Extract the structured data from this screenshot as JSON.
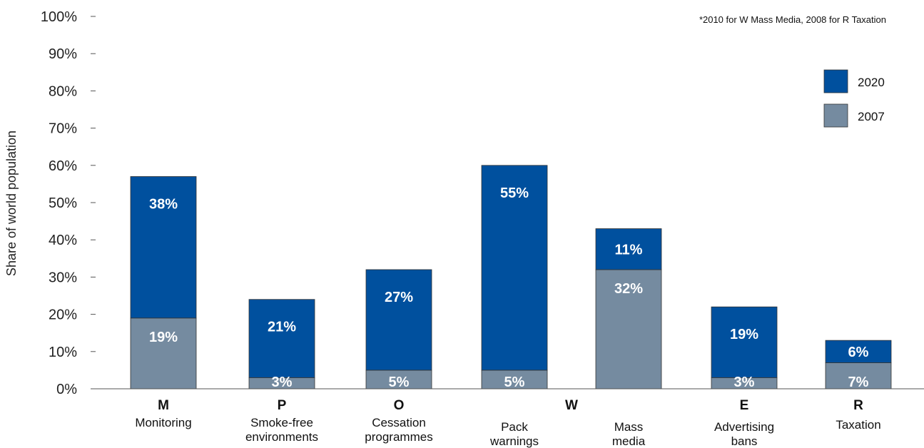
{
  "chart_data": {
    "type": "bar",
    "stacked": true,
    "ylabel": "Share of world population",
    "ylim": [
      0,
      100
    ],
    "yticks": [
      "0%",
      "10%",
      "20%",
      "30%",
      "40%",
      "50%",
      "60%",
      "70%",
      "80%",
      "90%",
      "100%"
    ],
    "note": "*2010 for W Mass Media, 2008 for R Taxation",
    "groups": [
      {
        "letter": "M",
        "categories": [
          "Monitoring"
        ]
      },
      {
        "letter": "P",
        "categories": [
          "Smoke-free environments"
        ]
      },
      {
        "letter": "O",
        "categories": [
          "Cessation programmes"
        ]
      },
      {
        "letter": "W",
        "categories": [
          "Pack warnings",
          "Mass media"
        ]
      },
      {
        "letter": "E",
        "categories": [
          "Advertising bans"
        ]
      },
      {
        "letter": "R",
        "categories": [
          "Taxation"
        ]
      }
    ],
    "categories": [
      [
        "Monitoring"
      ],
      [
        "Smoke-free",
        "environments"
      ],
      [
        "Cessation",
        "programmes"
      ],
      [
        "Pack",
        "warnings"
      ],
      [
        "Mass",
        "media"
      ],
      [
        "Advertising",
        "bans"
      ],
      [
        "Taxation"
      ]
    ],
    "series": [
      {
        "name": "2007",
        "color": "#758ba0",
        "values": [
          19,
          3,
          5,
          5,
          32,
          3,
          7
        ],
        "labels": [
          "19%",
          "3%",
          "5%",
          "5%",
          "32%",
          "3%",
          "7%"
        ]
      },
      {
        "name": "2020",
        "color": "#00509e",
        "values": [
          38,
          21,
          27,
          55,
          11,
          19,
          6
        ],
        "labels": [
          "38%",
          "21%",
          "27%",
          "55%",
          "11%",
          "19%",
          "6%"
        ]
      }
    ],
    "legend": {
      "position": "top-right",
      "order": [
        "2020",
        "2007"
      ]
    },
    "grid": false
  }
}
